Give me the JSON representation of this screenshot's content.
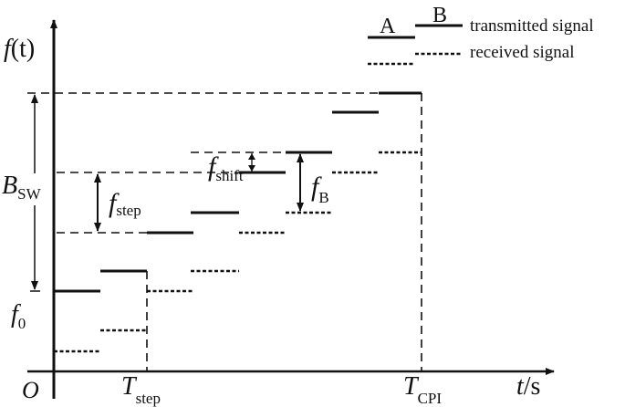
{
  "axes": {
    "y_label": "f(t)",
    "y_label_f": "f",
    "y_label_arg": "(t)",
    "x_label": "t / s",
    "x_label_t": "t",
    "x_label_unit": "/s",
    "origin": "O",
    "t_step": {
      "main": "T",
      "sub": "step"
    },
    "t_cpi": {
      "main": "T",
      "sub": "CPI"
    }
  },
  "annotations": {
    "bandwidth": {
      "main": "B",
      "sub": "SW"
    },
    "f0": {
      "main": "f",
      "sub": "0"
    },
    "f_step": {
      "main": "f",
      "sub": "step"
    },
    "f_shift": {
      "main": "f",
      "sub": "shift"
    },
    "f_B": {
      "main": "f",
      "sub": "B"
    }
  },
  "legend": {
    "label_a": "A",
    "label_b": "B",
    "transmitted": "transmitted signal",
    "received": "received signal"
  },
  "colors": {
    "line": "#111111",
    "background": "#ffffff"
  }
}
